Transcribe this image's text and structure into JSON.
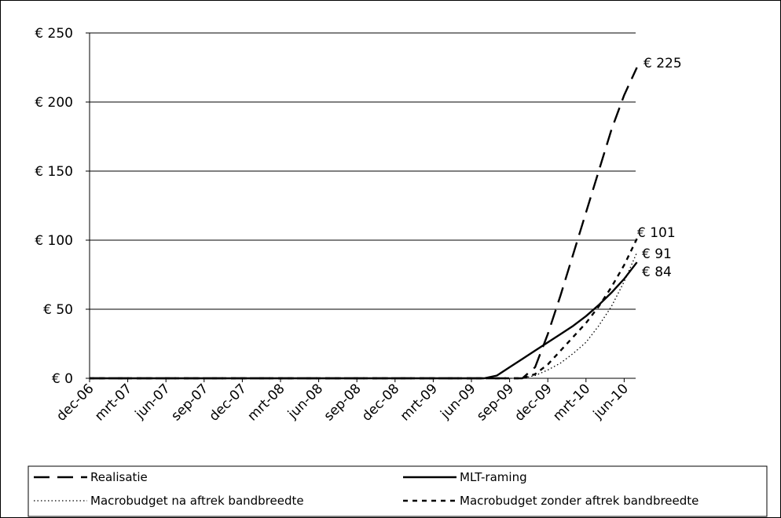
{
  "chart_data": {
    "type": "line",
    "title": "",
    "xlabel": "",
    "ylabel": "",
    "ylim": [
      0,
      250
    ],
    "yticks": [
      0,
      50,
      100,
      150,
      200,
      250
    ],
    "ytick_labels": [
      "€ 0",
      "€ 50",
      "€ 100",
      "€ 150",
      "€ 200",
      "€ 250"
    ],
    "grid": "horizontal",
    "legend_position": "bottom",
    "categories": [
      "dec-06",
      "jan-07",
      "feb-07",
      "mrt-07",
      "apr-07",
      "mei-07",
      "jun-07",
      "jul-07",
      "aug-07",
      "sep-07",
      "okt-07",
      "nov-07",
      "dec-07",
      "jan-08",
      "feb-08",
      "mrt-08",
      "apr-08",
      "mei-08",
      "jun-08",
      "jul-08",
      "aug-08",
      "sep-08",
      "okt-08",
      "nov-08",
      "dec-08",
      "jan-09",
      "feb-09",
      "mrt-09",
      "apr-09",
      "mei-09",
      "jun-09",
      "jul-09",
      "aug-09",
      "sep-09",
      "okt-09",
      "nov-09",
      "dec-09",
      "jan-10",
      "feb-10",
      "mrt-10",
      "apr-10",
      "mei-10",
      "jun-10",
      "jul-10"
    ],
    "xtick_labels": [
      "dec-06",
      "mrt-07",
      "jun-07",
      "sep-07",
      "dec-07",
      "mrt-08",
      "jun-08",
      "sep-08",
      "dec-08",
      "mrt-09",
      "jun-09",
      "sep-09",
      "dec-09",
      "mrt-10",
      "jun-10"
    ],
    "series": [
      {
        "name": "Realisatie",
        "style": "long-dash",
        "color": "#000000",
        "values": [
          0,
          0,
          0,
          0,
          0,
          0,
          0,
          0,
          0,
          0,
          0,
          0,
          0,
          0,
          0,
          0,
          0,
          0,
          0,
          0,
          0,
          0,
          0,
          0,
          0,
          0,
          0,
          0,
          0,
          0,
          0,
          0,
          0,
          0,
          0,
          8,
          32,
          60,
          90,
          120,
          150,
          180,
          205,
          225
        ],
        "end_label": "€ 225"
      },
      {
        "name": "MLT-raming",
        "style": "solid",
        "color": "#000000",
        "values": [
          0,
          0,
          0,
          0,
          0,
          0,
          0,
          0,
          0,
          0,
          0,
          0,
          0,
          0,
          0,
          0,
          0,
          0,
          0,
          0,
          0,
          0,
          0,
          0,
          0,
          0,
          0,
          0,
          0,
          0,
          0,
          0,
          2,
          8,
          14,
          20,
          26,
          32,
          38,
          45,
          53,
          62,
          72,
          84
        ],
        "end_label": "€ 84"
      },
      {
        "name": "Macrobudget na aftrek bandbreedte",
        "style": "dotted",
        "color": "#000000",
        "values": [
          0,
          0,
          0,
          0,
          0,
          0,
          0,
          0,
          0,
          0,
          0,
          0,
          0,
          0,
          0,
          0,
          0,
          0,
          0,
          0,
          0,
          0,
          0,
          0,
          0,
          0,
          0,
          0,
          0,
          0,
          0,
          0,
          0,
          0,
          0,
          2,
          6,
          11,
          18,
          26,
          38,
          52,
          70,
          91
        ],
        "end_label": "€ 91"
      },
      {
        "name": "Macrobudget zonder aftrek bandbreedte",
        "style": "short-dash",
        "color": "#000000",
        "values": [
          0,
          0,
          0,
          0,
          0,
          0,
          0,
          0,
          0,
          0,
          0,
          0,
          0,
          0,
          0,
          0,
          0,
          0,
          0,
          0,
          0,
          0,
          0,
          0,
          0,
          0,
          0,
          0,
          0,
          0,
          0,
          0,
          0,
          0,
          0,
          3,
          10,
          20,
          30,
          40,
          52,
          66,
          82,
          101
        ],
        "end_label": "€ 101"
      }
    ]
  }
}
